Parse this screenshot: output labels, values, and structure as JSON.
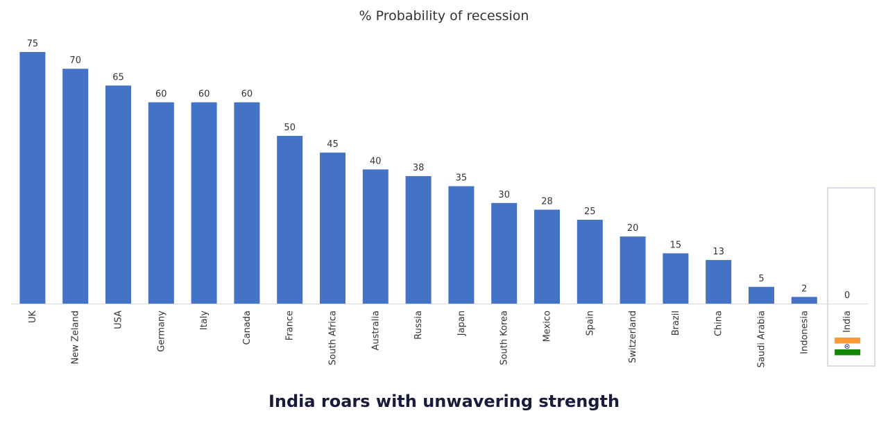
{
  "chart_data": {
    "type": "bar",
    "title": "% Probability of recession",
    "subtitle": "India roars with unwavering strength",
    "categories": [
      "UK",
      "New Zeland",
      "USA",
      "Germany",
      "Italy",
      "Canada",
      "France",
      "South Africa",
      "Australia",
      "Russia",
      "Japan",
      "South Korea",
      "Mexico",
      "Spain",
      "Switzerland",
      "Brazil",
      "China",
      "Saudi Arabia",
      "Indonesia",
      "India"
    ],
    "values": [
      75,
      70,
      65,
      60,
      60,
      60,
      50,
      45,
      40,
      38,
      35,
      30,
      28,
      25,
      20,
      15,
      13,
      5,
      2,
      0
    ],
    "ylim": [
      0,
      75
    ],
    "xlabel": "",
    "ylabel": "",
    "grid": false,
    "data_labels": true,
    "highlighted_category": "India",
    "colors": {
      "bar": "#4472C4",
      "axis": "#D9D9D9",
      "highlight_border": "#D6DCE4",
      "label": "#333333",
      "flag_saffron": "#FF9933",
      "flag_white": "#FFFFFF",
      "flag_green": "#138808",
      "flag_chakra": "#000080"
    }
  }
}
